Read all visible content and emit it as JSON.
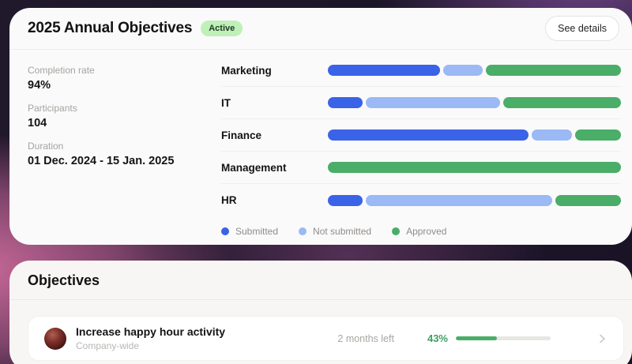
{
  "summary_card": {
    "title": "2025 Annual Objectives",
    "status_badge": "Active",
    "details_button": "See details",
    "stats": [
      {
        "label": "Completion rate",
        "value": "94%"
      },
      {
        "label": "Participants",
        "value": "104"
      },
      {
        "label": "Duration",
        "value": "01 Dec. 2024 - 15 Jan. 2025"
      }
    ]
  },
  "chart_data": {
    "type": "bar",
    "orientation": "horizontal",
    "stacked": true,
    "unit": "percent_of_row",
    "categories": [
      "Marketing",
      "IT",
      "Finance",
      "Management",
      "HR"
    ],
    "series": [
      {
        "name": "Submitted",
        "color": "#3a63e8",
        "values": [
          39,
          12,
          70,
          0,
          12
        ]
      },
      {
        "name": "Not submitted",
        "color": "#9ab9f5",
        "values": [
          14,
          47,
          14,
          0,
          65
        ]
      },
      {
        "name": "Approved",
        "color": "#4aad68",
        "values": [
          47,
          41,
          16,
          100,
          23
        ]
      }
    ],
    "legend_position": "bottom",
    "grid": false
  },
  "objectives_card": {
    "title": "Objectives",
    "items": [
      {
        "title": "Increase happy hour activity",
        "scope": "Company-wide",
        "time_left": "2 months left",
        "progress_label": "43%",
        "progress_percent": 43
      }
    ]
  },
  "colors": {
    "submitted_blue": "#3a63e8",
    "not_submitted_blue": "#9ab9f5",
    "approved_green": "#4aad68",
    "active_badge_bg": "#bff0b8",
    "progress_green": "#3d9f5f",
    "background_pink": "#d26ea0",
    "background_purple": "#74488e",
    "background_dark": "#1a1326"
  }
}
